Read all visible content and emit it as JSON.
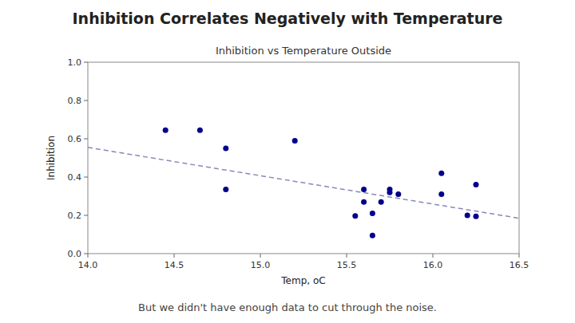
{
  "chart_data": {
    "type": "scatter",
    "title": "Inhibition Correlates Negatively with Temperature",
    "subtitle": "But we didn't have enough data to cut through the noise.",
    "plot_title": "Inhibition vs Temperature Outside",
    "x_label": "Temp, oC",
    "y_label": "Inhibition",
    "xlim": [
      14.0,
      16.5
    ],
    "ylim": [
      0.0,
      1.0
    ],
    "xticks": [
      {
        "value": 14.0,
        "label": "14.0"
      },
      14.5,
      {
        "value": 15.0,
        "label": "15.0"
      },
      15.5,
      {
        "value": 16.0,
        "label": "16.0"
      },
      16.5
    ],
    "yticks": [
      {
        "value": 0.0,
        "label": "0.0"
      },
      0.2,
      0.4,
      0.6,
      0.8,
      {
        "value": 1.0,
        "label": "1.0"
      }
    ],
    "grid": false,
    "series": [
      {
        "type": "scatter",
        "marker": "circle",
        "color": "#00008B",
        "x": [
          14.45,
          14.65,
          14.8,
          14.8,
          15.2,
          15.55,
          15.6,
          15.6,
          15.65,
          15.65,
          15.7,
          15.75,
          15.75,
          15.8,
          16.05,
          16.05,
          16.2,
          16.25,
          16.25
        ],
        "values": [
          0.645,
          0.645,
          0.55,
          0.335,
          0.59,
          0.197,
          0.27,
          0.335,
          0.21,
          0.095,
          0.27,
          0.32,
          0.335,
          0.31,
          0.42,
          0.31,
          0.2,
          0.36,
          0.195
        ]
      },
      {
        "type": "line",
        "line_style": "dashed",
        "color": "#8888BB",
        "x": [
          14.0,
          16.5
        ],
        "values": [
          0.555,
          0.185
        ]
      }
    ]
  }
}
